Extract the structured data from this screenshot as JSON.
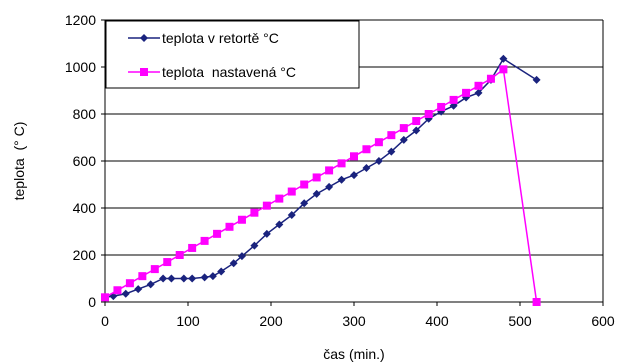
{
  "chart_data": {
    "type": "line",
    "xlabel": "čas (min.)",
    "ylabel": "teplota  (° C)",
    "xlim": [
      0,
      600
    ],
    "ylim": [
      0,
      1200
    ],
    "xticks": [
      "0",
      "100",
      "200",
      "300",
      "400",
      "500",
      "600"
    ],
    "yticks": [
      "0",
      "200",
      "400",
      "600",
      "800",
      "1000",
      "1200"
    ],
    "grid": "horizontal",
    "legend_position": "top-left",
    "series": [
      {
        "name": "teplota v retortě °C",
        "color": "#1a237e",
        "marker": "diamond",
        "x": [
          0,
          10,
          25,
          40,
          55,
          70,
          80,
          95,
          105,
          120,
          130,
          140,
          155,
          165,
          180,
          195,
          210,
          225,
          240,
          255,
          270,
          285,
          300,
          315,
          330,
          345,
          360,
          375,
          390,
          405,
          420,
          435,
          450,
          465,
          480,
          520
        ],
        "y": [
          20,
          25,
          35,
          55,
          75,
          100,
          100,
          100,
          100,
          105,
          110,
          130,
          165,
          195,
          240,
          290,
          330,
          370,
          420,
          460,
          490,
          520,
          540,
          570,
          600,
          640,
          690,
          730,
          780,
          810,
          835,
          870,
          890,
          945,
          1035,
          945
        ]
      },
      {
        "name": "teplota  nastavená °C",
        "color": "#ff00ff",
        "marker": "square",
        "x": [
          0,
          15,
          30,
          45,
          60,
          75,
          90,
          105,
          120,
          135,
          150,
          165,
          180,
          195,
          210,
          225,
          240,
          255,
          270,
          285,
          300,
          315,
          330,
          345,
          360,
          375,
          390,
          405,
          420,
          435,
          450,
          465,
          480,
          520
        ],
        "y": [
          20,
          50,
          80,
          110,
          140,
          170,
          200,
          230,
          260,
          290,
          320,
          350,
          380,
          410,
          440,
          470,
          500,
          530,
          560,
          590,
          620,
          650,
          680,
          710,
          740,
          770,
          800,
          830,
          860,
          890,
          920,
          950,
          990,
          0
        ]
      }
    ]
  }
}
